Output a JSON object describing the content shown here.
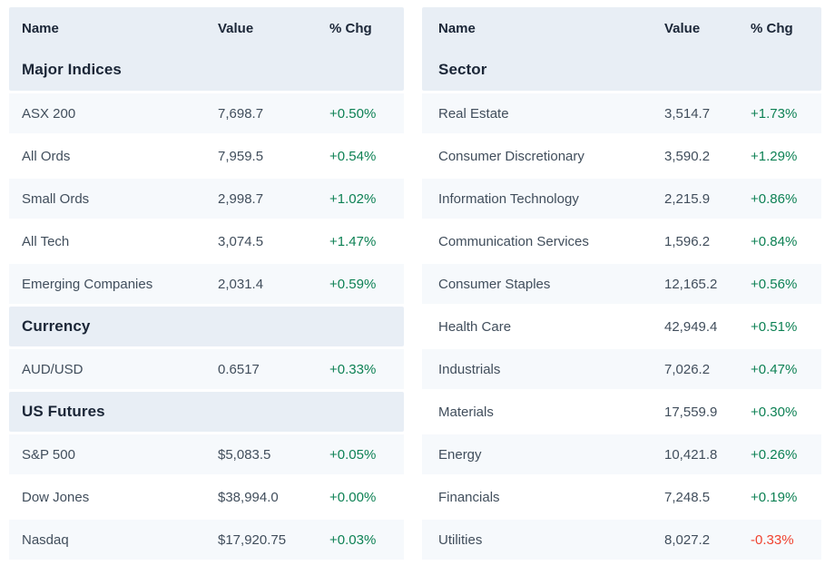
{
  "colors": {
    "header_bg": "#e8eef5",
    "stripe_bg": "#f6f9fc",
    "row_bg": "#ffffff",
    "header_text": "#1b2637",
    "body_text": "#414e5c",
    "positive": "#0d8154",
    "negative": "#f0422f"
  },
  "left_table": {
    "columns": [
      "Name",
      "Value",
      "% Chg"
    ],
    "sections": [
      {
        "title": "Major Indices",
        "rows": [
          {
            "name": "ASX 200",
            "value": "7,698.7",
            "chg": "+0.50%"
          },
          {
            "name": "All Ords",
            "value": "7,959.5",
            "chg": "+0.54%"
          },
          {
            "name": "Small Ords",
            "value": "2,998.7",
            "chg": "+1.02%"
          },
          {
            "name": "All Tech",
            "value": "3,074.5",
            "chg": "+1.47%"
          },
          {
            "name": "Emerging Companies",
            "value": "2,031.4",
            "chg": "+0.59%"
          }
        ]
      },
      {
        "title": "Currency",
        "rows": [
          {
            "name": "AUD/USD",
            "value": "0.6517",
            "chg": "+0.33%"
          }
        ]
      },
      {
        "title": "US Futures",
        "rows": [
          {
            "name": "S&P 500",
            "value": "$5,083.5",
            "chg": "+0.05%"
          },
          {
            "name": "Dow Jones",
            "value": "$38,994.0",
            "chg": "+0.00%"
          },
          {
            "name": "Nasdaq",
            "value": "$17,920.75",
            "chg": "+0.03%"
          }
        ]
      }
    ]
  },
  "right_table": {
    "columns": [
      "Name",
      "Value",
      "% Chg"
    ],
    "sections": [
      {
        "title": "Sector",
        "rows": [
          {
            "name": "Real Estate",
            "value": "3,514.7",
            "chg": "+1.73%"
          },
          {
            "name": "Consumer Discretionary",
            "value": "3,590.2",
            "chg": "+1.29%"
          },
          {
            "name": "Information Technology",
            "value": "2,215.9",
            "chg": "+0.86%"
          },
          {
            "name": "Communication Services",
            "value": "1,596.2",
            "chg": "+0.84%"
          },
          {
            "name": "Consumer Staples",
            "value": "12,165.2",
            "chg": "+0.56%"
          },
          {
            "name": "Health Care",
            "value": "42,949.4",
            "chg": "+0.51%"
          },
          {
            "name": "Industrials",
            "value": "7,026.2",
            "chg": "+0.47%"
          },
          {
            "name": "Materials",
            "value": "17,559.9",
            "chg": "+0.30%"
          },
          {
            "name": "Energy",
            "value": "10,421.8",
            "chg": "+0.26%"
          },
          {
            "name": "Financials",
            "value": "7,248.5",
            "chg": "+0.19%"
          },
          {
            "name": "Utilities",
            "value": "8,027.2",
            "chg": "-0.33%"
          }
        ]
      }
    ]
  }
}
